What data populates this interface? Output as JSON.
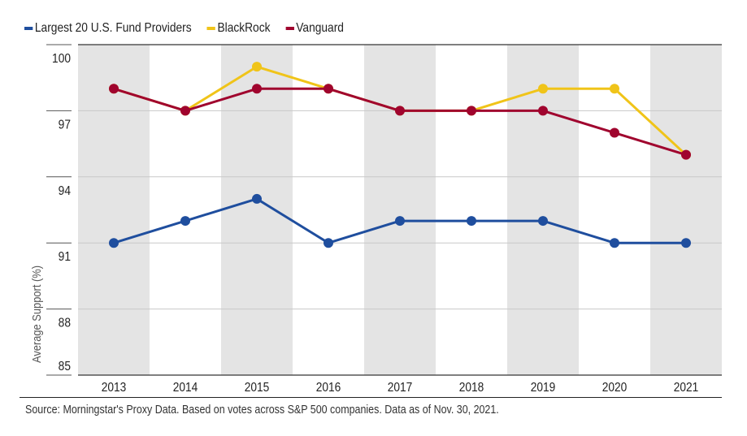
{
  "chart_data": {
    "type": "line",
    "title": "",
    "xlabel": "",
    "ylabel": "Average Support (%)",
    "categories": [
      "2013",
      "2014",
      "2015",
      "2016",
      "2017",
      "2018",
      "2019",
      "2020",
      "2021"
    ],
    "ylim": [
      85,
      100
    ],
    "yticks": [
      100,
      97,
      94,
      91,
      88,
      85
    ],
    "grid": true,
    "legend_position": "top-left",
    "series": [
      {
        "name": "Largest 20 U.S. Fund Providers",
        "color": "#1f4e9e",
        "values": [
          91,
          92,
          93,
          91,
          92,
          92,
          92,
          91,
          91
        ]
      },
      {
        "name": "BlackRock",
        "color": "#f0c419",
        "values": [
          98,
          97,
          99,
          98,
          97,
          97,
          98,
          98,
          95
        ]
      },
      {
        "name": "Vanguard",
        "color": "#a0042e",
        "values": [
          98,
          97,
          98,
          98,
          97,
          97,
          97,
          96,
          95
        ]
      }
    ],
    "band_color": "#e4e4e4",
    "source": "Source: Morningstar's Proxy Data. Based on votes across S&P 500 companies. Data as of Nov. 30, 2021."
  }
}
